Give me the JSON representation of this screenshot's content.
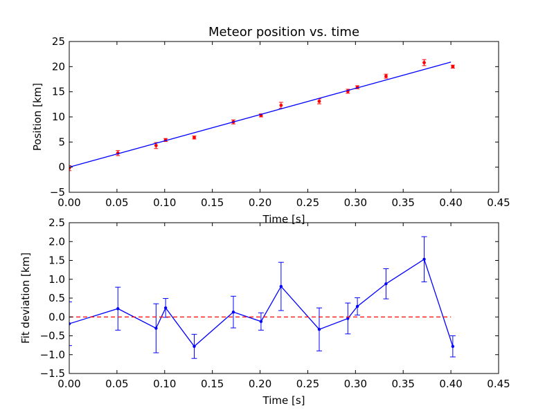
{
  "colors": {
    "fit_line": "#0000ff",
    "measurement": "#ff0000",
    "deviation": "#0000ff",
    "zero_line": "#ff0000",
    "axes": "#000000"
  },
  "chart_data": [
    {
      "type": "scatter",
      "title": "Meteor position vs. time",
      "xlabel": "Time [s]",
      "ylabel": "Position [km]",
      "xlim": [
        0.0,
        0.45
      ],
      "ylim": [
        -5,
        25
      ],
      "xticks": [
        "0.00",
        "0.05",
        "0.10",
        "0.15",
        "0.20",
        "0.25",
        "0.30",
        "0.35",
        "0.40",
        "0.45"
      ],
      "yticks": [
        "−5",
        "0",
        "5",
        "10",
        "15",
        "20",
        "25"
      ],
      "grid": false,
      "series": [
        {
          "kind": "errorbar-points",
          "color": "measurement",
          "x": [
            0.0,
            0.051,
            0.091,
            0.101,
            0.131,
            0.172,
            0.201,
            0.222,
            0.262,
            0.292,
            0.302,
            0.332,
            0.372,
            0.402
          ],
          "y": [
            -0.2,
            2.8,
            4.3,
            5.4,
            5.9,
            9.0,
            10.3,
            12.3,
            13.1,
            15.1,
            15.9,
            18.1,
            20.8,
            20.0
          ],
          "yerr": [
            0.5,
            0.5,
            0.6,
            0.3,
            0.3,
            0.4,
            0.3,
            0.6,
            0.5,
            0.4,
            0.3,
            0.4,
            0.6,
            0.3
          ]
        },
        {
          "kind": "fit-line",
          "color": "fit_line",
          "x": [
            0.0,
            0.4
          ],
          "y": [
            0.0,
            20.9
          ]
        }
      ]
    },
    {
      "type": "line",
      "title": "",
      "xlabel": "Time [s]",
      "ylabel": "Fit deviation [km]",
      "xlim": [
        0.0,
        0.45
      ],
      "ylim": [
        -1.5,
        2.5
      ],
      "xticks": [
        "0.00",
        "0.05",
        "0.10",
        "0.15",
        "0.20",
        "0.25",
        "0.30",
        "0.35",
        "0.40",
        "0.45"
      ],
      "yticks": [
        "−1.5",
        "−1.0",
        "−0.5",
        "0.0",
        "0.5",
        "1.0",
        "1.5",
        "2.0",
        "2.5"
      ],
      "grid": false,
      "series": [
        {
          "kind": "errorbar-line",
          "color": "deviation",
          "x": [
            0.0,
            0.051,
            0.091,
            0.101,
            0.131,
            0.172,
            0.201,
            0.222,
            0.262,
            0.292,
            0.302,
            0.332,
            0.372,
            0.402
          ],
          "y": [
            -0.18,
            0.22,
            -0.3,
            0.24,
            -0.78,
            0.13,
            -0.12,
            0.81,
            -0.33,
            -0.04,
            0.28,
            0.88,
            1.53,
            -0.78
          ],
          "yerr": [
            0.58,
            0.57,
            0.65,
            0.25,
            0.32,
            0.42,
            0.23,
            0.64,
            0.57,
            0.41,
            0.23,
            0.4,
            0.6,
            0.28
          ]
        },
        {
          "kind": "reference-line",
          "color": "zero_line",
          "dashed": true,
          "x": [
            0.0,
            0.4
          ],
          "y": [
            0.0,
            0.0
          ]
        }
      ]
    }
  ]
}
